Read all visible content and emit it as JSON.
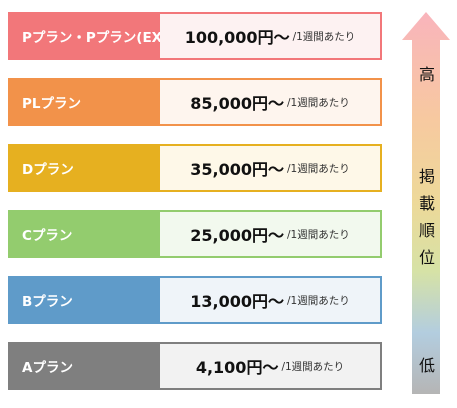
{
  "plans": [
    {
      "label": "Pプラン・Pプラン(EX)",
      "price": "100,000円〜",
      "unit": "/1週間あたり",
      "color": "#F2777A",
      "bg": "#FDF2F2"
    },
    {
      "label": "PLプラン",
      "price": "85,000円〜",
      "unit": "/1週間あたり",
      "color": "#F2924A",
      "bg": "#FEF5EE"
    },
    {
      "label": "Dプラン",
      "price": "35,000円〜",
      "unit": "/1週間あたり",
      "color": "#E6B020",
      "bg": "#FEF8E8"
    },
    {
      "label": "Cプラン",
      "price": "25,000円〜",
      "unit": "/1週間あたり",
      "color": "#93CC6E",
      "bg": "#F2F9EE"
    },
    {
      "label": "Bプラン",
      "price": "13,000円〜",
      "unit": "/1週間あたり",
      "color": "#5F9BC9",
      "bg": "#EFF4F9"
    },
    {
      "label": "Aプラン",
      "price": "4,100円〜",
      "unit": "/1週間あたり",
      "color": "#7F7F7F",
      "bg": "#F2F2F2"
    }
  ],
  "scale": {
    "high": "高",
    "low": "低",
    "middle": [
      "掲",
      "載",
      "順",
      "位"
    ]
  }
}
